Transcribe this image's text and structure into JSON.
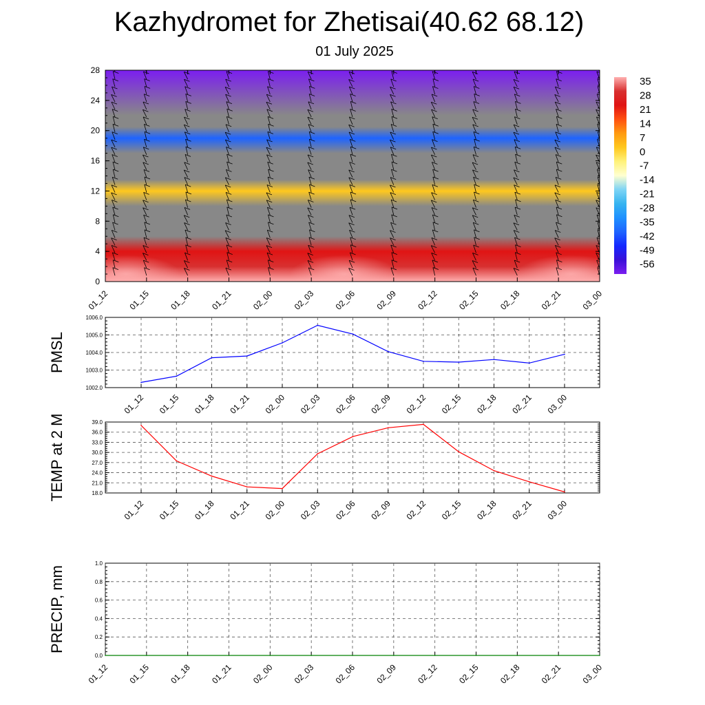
{
  "title": "Kazhydromet for Zhetisai(40.62 68.12)",
  "subtitle": "01 July 2025",
  "chart_data": [
    {
      "type": "heatmap",
      "name": "vertical temperature cross-section with wind barbs",
      "x_categories": [
        "01_12",
        "01_15",
        "01_18",
        "01_21",
        "02_00",
        "02_03",
        "02_06",
        "02_09",
        "02_12",
        "02_15",
        "02_18",
        "02_21",
        "03_00"
      ],
      "y_ticks": [
        0,
        4,
        8,
        12,
        16,
        20,
        24,
        28
      ],
      "ylim": [
        0,
        28
      ],
      "colorbar_labels": [
        "35",
        "28",
        "21",
        "14",
        "7",
        "0",
        "-7",
        "-14",
        "-21",
        "-28",
        "-35",
        "-42",
        "-49",
        "-56"
      ],
      "temperature_layers": [
        {
          "height": 0,
          "temp": 35
        },
        {
          "height": 2,
          "temp": 28
        },
        {
          "height": 4,
          "temp": 21
        },
        {
          "height": 6,
          "temp": 18
        },
        {
          "height": 8,
          "temp": 12
        },
        {
          "height": 10,
          "temp": 6
        },
        {
          "height": 12,
          "temp": 0
        },
        {
          "height": 13.5,
          "temp": -8
        },
        {
          "height": 15,
          "temp": -18
        },
        {
          "height": 17,
          "temp": -30
        },
        {
          "height": 19,
          "temp": -42
        },
        {
          "height": 20.5,
          "temp": -52
        },
        {
          "height": 22,
          "temp": -60
        },
        {
          "height": 28,
          "temp": -62
        }
      ],
      "colors": {
        "-62": "#7b1ef0",
        "-56": "#3a10d8",
        "-49": "#1428ff",
        "-42": "#1e64ff",
        "-35": "#1e90ff",
        "-28": "#36b4f0",
        "-21": "#7dd4f5",
        "-14": "#ffffd0",
        "-7": "#fff27a",
        "0": "#ffc81e",
        "7": "#ff9a10",
        "14": "#ff5010",
        "21": "#e01414",
        "28": "#d83030",
        "35": "#ffb0b0"
      }
    },
    {
      "type": "line",
      "ylabel": "PMSL",
      "x": [
        "01_12",
        "01_15",
        "01_18",
        "01_21",
        "02_00",
        "02_03",
        "02_06",
        "02_09",
        "02_12",
        "02_15",
        "02_18",
        "02_21",
        "03_00"
      ],
      "values": [
        1002.3,
        1002.65,
        1003.7,
        1003.8,
        1004.55,
        1005.55,
        1005.05,
        1004.05,
        1003.5,
        1003.45,
        1003.6,
        1003.4,
        1003.9
      ],
      "ylim": [
        1002.0,
        1006.0
      ],
      "y_ticks": [
        "1002.0",
        "1003.0",
        "1004.0",
        "1005.0",
        "1006.0"
      ],
      "color": "#0000ff",
      "grid": true
    },
    {
      "type": "line",
      "ylabel": "TEMP at 2 M",
      "x": [
        "01_12",
        "01_15",
        "01_18",
        "01_21",
        "02_00",
        "02_03",
        "02_06",
        "02_09",
        "02_12",
        "02_15",
        "02_18",
        "02_21",
        "03_00"
      ],
      "values": [
        38.0,
        27.5,
        23.0,
        19.8,
        19.3,
        29.6,
        34.7,
        37.3,
        38.3,
        30.2,
        24.6,
        21.3,
        18.3
      ],
      "value_x_positions": [
        0,
        1,
        2,
        3,
        4,
        5,
        6,
        7,
        8,
        9,
        10,
        11,
        12
      ],
      "ylim": [
        18.0,
        39.0
      ],
      "y_ticks": [
        "18.0",
        "21.0",
        "24.0",
        "27.0",
        "30.0",
        "33.0",
        "36.0",
        "39.0"
      ],
      "color": "#ff0000",
      "grid": true
    },
    {
      "type": "line",
      "ylabel": "PRECIP, mm",
      "x": [
        "01_12",
        "01_15",
        "01_18",
        "01_21",
        "02_00",
        "02_03",
        "02_06",
        "02_09",
        "02_12",
        "02_15",
        "02_18",
        "02_21",
        "03_00"
      ],
      "values": [
        0,
        0,
        0,
        0,
        0,
        0,
        0,
        0,
        0,
        0,
        0,
        0,
        0
      ],
      "ylim": [
        0.0,
        1.0
      ],
      "y_ticks": [
        "0.0",
        "0.2",
        "0.4",
        "0.6",
        "0.8",
        "1.0"
      ],
      "color": "#008000",
      "grid": true
    }
  ]
}
